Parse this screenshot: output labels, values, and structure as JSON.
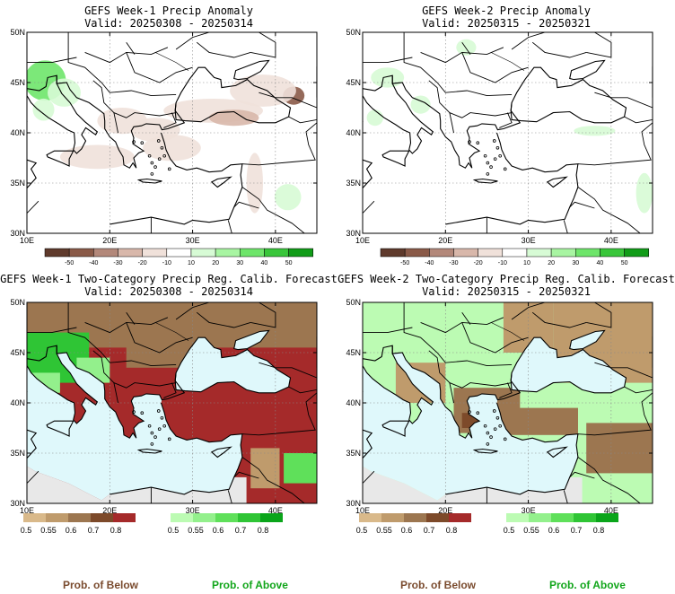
{
  "colors": {
    "sea": "#dff8fb",
    "land": "#ffffff",
    "grey_land": "#e8e8e8",
    "anom_neg": [
      "#5f3a2c",
      "#8a5a48",
      "#b3887a",
      "#d8b7aa",
      "#f0e1da"
    ],
    "anom_pos": [
      "#d7fbd5",
      "#a8f5a2",
      "#6ee56a",
      "#39c63a",
      "#119c18"
    ],
    "prob_below": [
      "#d9b98a",
      "#bf9b6c",
      "#9c7650",
      "#7d4a2a",
      "#a52a2a"
    ],
    "prob_above": [
      "#bcfbb3",
      "#93f08c",
      "#5fe05a",
      "#2fc535",
      "#0aa51a"
    ],
    "below_label": "#7a4b2e",
    "above_label": "#12a61b"
  },
  "panels": [
    {
      "id": "p1",
      "kind": "anomaly",
      "title": "GEFS Week-1 Precip Anomaly",
      "valid": "Valid: 20250308 - 20250314",
      "colorbar": {
        "ticks": [
          "-50",
          "-40",
          "-30",
          "-20",
          "-10",
          "10",
          "20",
          "30",
          "40",
          "50"
        ]
      }
    },
    {
      "id": "p2",
      "kind": "anomaly",
      "title": "GEFS Week-2 Precip Anomaly",
      "valid": "Valid: 20250315 - 20250321",
      "colorbar": {
        "ticks": [
          "-50",
          "-40",
          "-30",
          "-20",
          "-10",
          "10",
          "20",
          "30",
          "40",
          "50"
        ]
      }
    },
    {
      "id": "p3",
      "kind": "probability",
      "title": "GEFS Week-1 Two-Category Precip Reg. Calib. Forecast",
      "valid": "Valid: 20250308 - 20250314",
      "colorbar": {
        "below_ticks": [
          "0.5",
          "0.55",
          "0.6",
          "0.7",
          "0.8"
        ],
        "above_ticks": [
          "0.5",
          "0.55",
          "0.6",
          "0.7",
          "0.8"
        ]
      },
      "below_label": "Prob. of Below",
      "above_label": "Prob. of Above"
    },
    {
      "id": "p4",
      "kind": "probability",
      "title": "GEFS Week-2 Two-Category Precip Reg. Calib. Forecast",
      "valid": "Valid: 20250315 - 20250321",
      "colorbar": {
        "below_ticks": [
          "0.5",
          "0.55",
          "0.6",
          "0.7",
          "0.8"
        ],
        "above_ticks": [
          "0.5",
          "0.55",
          "0.6",
          "0.7",
          "0.8"
        ]
      },
      "below_label": "Prob. of Below",
      "above_label": "Prob. of Above"
    }
  ],
  "chart_data": [
    {
      "type": "heatmap",
      "panel": "p1",
      "title": "GEFS Week-1 Precip Anomaly",
      "subtitle": "Valid: 20250308 - 20250314",
      "xlim": [
        10,
        45
      ],
      "ylim": [
        30,
        50
      ],
      "xticks": [
        10,
        20,
        30,
        40
      ],
      "yticks": [
        30,
        35,
        40,
        45,
        50
      ],
      "xtick_labels": [
        "10E",
        "20E",
        "30E",
        "40E"
      ],
      "ytick_labels": [
        "30N",
        "35N",
        "40N",
        "45N",
        "50N"
      ],
      "levels": [
        -50,
        -40,
        -30,
        -20,
        -10,
        10,
        20,
        30,
        40,
        50
      ],
      "blobs": [
        {
          "lon": 12.2,
          "lat": 45.2,
          "rlon": 2.5,
          "rlat": 2.0,
          "value": 30
        },
        {
          "lon": 14.5,
          "lat": 44.0,
          "rlon": 2.0,
          "rlat": 1.4,
          "value": 18
        },
        {
          "lon": 12.0,
          "lat": 42.3,
          "rlon": 1.3,
          "rlat": 1.1,
          "value": 12
        },
        {
          "lon": 42.2,
          "lat": 43.7,
          "rlon": 1.3,
          "rlat": 0.9,
          "value": -45
        },
        {
          "lon": 38.5,
          "lat": 44.2,
          "rlon": 4.0,
          "rlat": 1.6,
          "value": -15
        },
        {
          "lon": 32.5,
          "lat": 42.2,
          "rlon": 6.0,
          "rlat": 1.2,
          "value": -12
        },
        {
          "lon": 21.5,
          "lat": 41.2,
          "rlon": 3.0,
          "rlat": 1.3,
          "value": -18
        },
        {
          "lon": 25.5,
          "lat": 40.3,
          "rlon": 3.0,
          "rlat": 1.2,
          "value": -14
        },
        {
          "lon": 18.5,
          "lat": 37.6,
          "rlon": 4.5,
          "rlat": 1.2,
          "value": -11
        },
        {
          "lon": 27.5,
          "lat": 38.5,
          "rlon": 3.5,
          "rlat": 1.3,
          "value": -12
        },
        {
          "lon": 35.0,
          "lat": 41.5,
          "rlon": 3.0,
          "rlat": 0.8,
          "value": -25
        },
        {
          "lon": 37.5,
          "lat": 35.0,
          "rlon": 1.0,
          "rlat": 3.0,
          "value": -11
        },
        {
          "lon": 41.5,
          "lat": 33.6,
          "rlon": 1.6,
          "rlat": 1.3,
          "value": 18
        }
      ]
    },
    {
      "type": "heatmap",
      "panel": "p2",
      "title": "GEFS Week-2 Precip Anomaly",
      "subtitle": "Valid: 20250315 - 20250321",
      "xlim": [
        10,
        45
      ],
      "ylim": [
        30,
        50
      ],
      "xticks": [
        10,
        20,
        30,
        40
      ],
      "yticks": [
        30,
        35,
        40,
        45,
        50
      ],
      "xtick_labels": [
        "10E",
        "20E",
        "30E",
        "40E"
      ],
      "ytick_labels": [
        "30N",
        "35N",
        "40N",
        "45N",
        "50N"
      ],
      "levels": [
        -50,
        -40,
        -30,
        -20,
        -10,
        10,
        20,
        30,
        40,
        50
      ],
      "blobs": [
        {
          "lon": 13.0,
          "lat": 45.5,
          "rlon": 2.0,
          "rlat": 1.0,
          "value": 18
        },
        {
          "lon": 17.0,
          "lat": 42.8,
          "rlon": 1.2,
          "rlat": 0.9,
          "value": 12
        },
        {
          "lon": 22.5,
          "lat": 48.5,
          "rlon": 1.2,
          "rlat": 0.8,
          "value": 12
        },
        {
          "lon": 11.5,
          "lat": 41.5,
          "rlon": 1.0,
          "rlat": 0.8,
          "value": 12
        },
        {
          "lon": 38.0,
          "lat": 40.2,
          "rlon": 2.5,
          "rlat": 0.5,
          "value": 12
        },
        {
          "lon": 44.0,
          "lat": 34.0,
          "rlon": 1.0,
          "rlat": 2.0,
          "value": 12
        }
      ]
    },
    {
      "type": "heatmap",
      "panel": "p3",
      "title": "GEFS Week-1 Two-Category Precip Reg. Calib. Forecast",
      "subtitle": "Valid: 20250308 - 20250314",
      "xlim": [
        10,
        45
      ],
      "ylim": [
        30,
        50
      ],
      "xticks": [
        10,
        20,
        30,
        40
      ],
      "yticks": [
        30,
        35,
        40,
        45,
        50
      ],
      "xtick_labels": [
        "10E",
        "20E",
        "30E",
        "40E"
      ],
      "ytick_labels": [
        "30N",
        "35N",
        "40N",
        "45N",
        "50N"
      ],
      "levels": [
        0.5,
        0.55,
        0.6,
        0.7,
        0.8
      ],
      "regions": [
        {
          "lon": [
            10,
            45
          ],
          "lat": [
            30,
            50
          ],
          "category": "below",
          "prob": 0.85
        },
        {
          "lon": [
            10,
            45
          ],
          "lat": [
            45.5,
            50
          ],
          "category": "below",
          "prob": 0.62
        },
        {
          "lon": [
            22,
            30
          ],
          "lat": [
            43.5,
            50
          ],
          "category": "below",
          "prob": 0.67
        },
        {
          "lon": [
            10,
            17.5
          ],
          "lat": [
            42,
            47
          ],
          "category": "above",
          "prob": 0.72
        },
        {
          "lon": [
            16,
            20
          ],
          "lat": [
            42,
            44.5
          ],
          "category": "above",
          "prob": 0.55
        },
        {
          "lon": [
            10,
            14
          ],
          "lat": [
            41,
            43
          ],
          "category": "above",
          "prob": 0.56
        },
        {
          "lon": [
            41,
            45
          ],
          "lat": [
            32,
            35
          ],
          "category": "above",
          "prob": 0.67
        },
        {
          "lon": [
            37,
            40.5
          ],
          "lat": [
            31.5,
            35.5
          ],
          "category": "below",
          "prob": 0.55
        }
      ]
    },
    {
      "type": "heatmap",
      "panel": "p4",
      "title": "GEFS Week-2 Two-Category Precip Reg. Calib. Forecast",
      "subtitle": "Valid: 20250315 - 20250321",
      "xlim": [
        10,
        45
      ],
      "ylim": [
        30,
        50
      ],
      "xticks": [
        10,
        20,
        30,
        40
      ],
      "yticks": [
        30,
        35,
        40,
        45,
        50
      ],
      "xtick_labels": [
        "10E",
        "20E",
        "30E",
        "40E"
      ],
      "ytick_labels": [
        "30N",
        "35N",
        "40N",
        "45N",
        "50N"
      ],
      "levels": [
        0.5,
        0.55,
        0.6,
        0.7,
        0.8
      ],
      "regions": [
        {
          "lon": [
            10,
            45
          ],
          "lat": [
            30,
            50
          ],
          "category": "above",
          "prob": 0.53
        },
        {
          "lon": [
            27,
            33
          ],
          "lat": [
            45,
            50
          ],
          "category": "below",
          "prob": 0.58
        },
        {
          "lon": [
            33,
            45
          ],
          "lat": [
            42,
            50
          ],
          "category": "below",
          "prob": 0.57
        },
        {
          "lon": [
            14,
            20
          ],
          "lat": [
            40,
            44
          ],
          "category": "below",
          "prob": 0.56
        },
        {
          "lon": [
            21,
            29
          ],
          "lat": [
            37,
            41.5
          ],
          "category": "below",
          "prob": 0.62
        },
        {
          "lon": [
            26,
            36
          ],
          "lat": [
            36.8,
            39.5
          ],
          "category": "below",
          "prob": 0.67
        },
        {
          "lon": [
            37,
            45
          ],
          "lat": [
            33,
            38
          ],
          "category": "below",
          "prob": 0.6
        },
        {
          "lon": [
            22,
            24
          ],
          "lat": [
            37.5,
            39
          ],
          "category": "below",
          "prob": 0.75
        }
      ]
    }
  ]
}
